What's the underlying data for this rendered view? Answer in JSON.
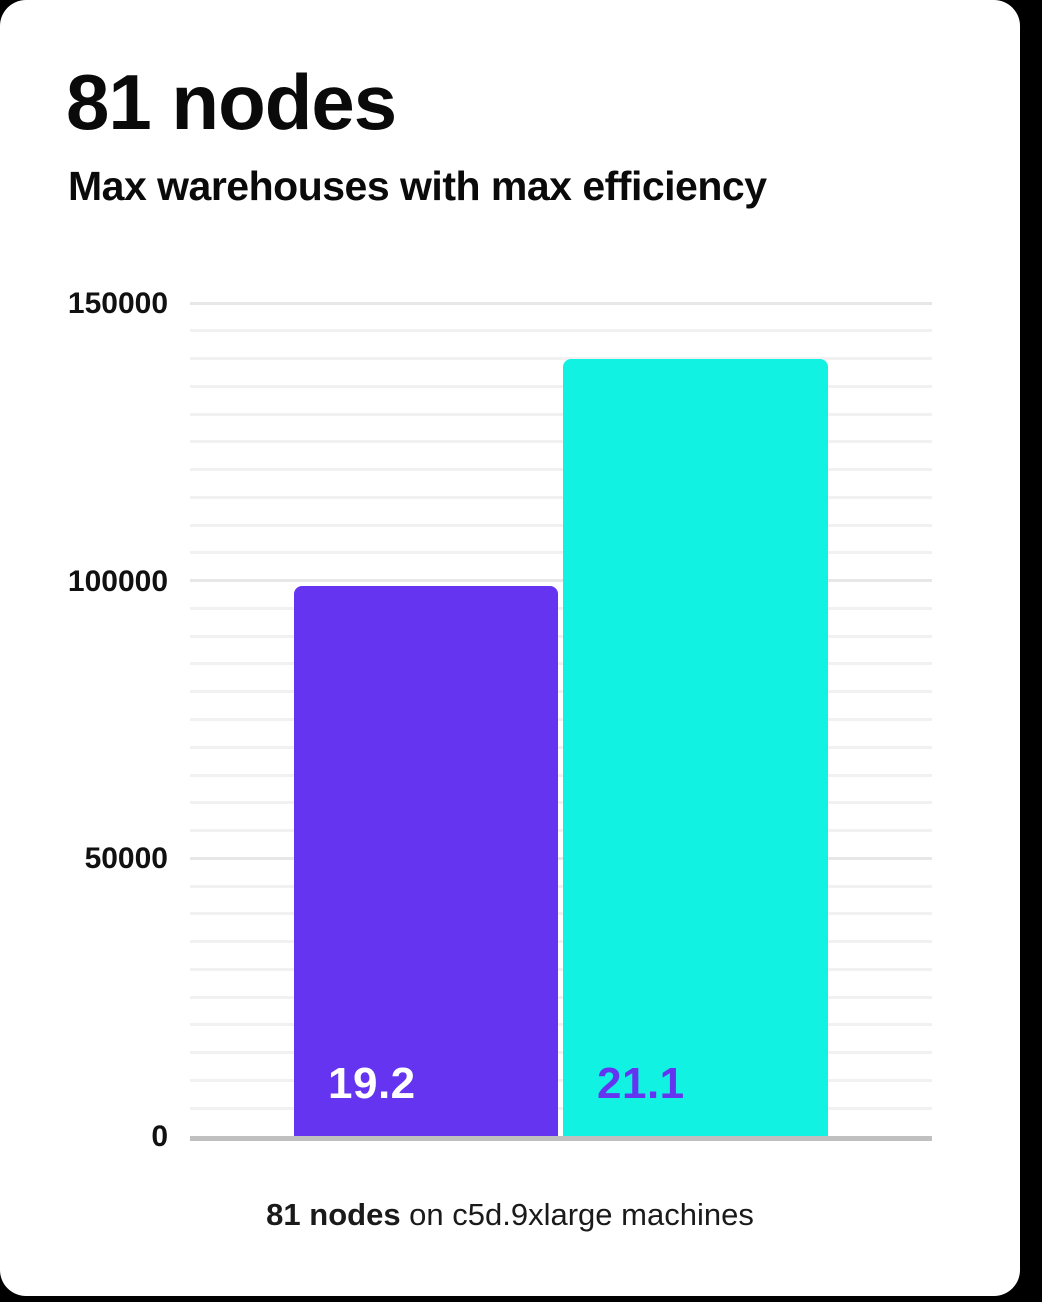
{
  "page": {
    "title": "81 nodes",
    "subtitle": "Max warehouses with max efficiency",
    "caption": {
      "bold": "81 nodes",
      "rest": " on c5d.9xlarge machines"
    }
  },
  "colors": {
    "page_bg": "#000000",
    "card_bg": "#ffffff",
    "text": "#0a0a0a",
    "bar_purple": "#6534f1",
    "bar_cyan": "#12f2e3",
    "label_on_purple": "#ffffff",
    "label_on_cyan": "#6534f1",
    "gridline_major": "#e7e7e7",
    "gridline_minor": "#f1f1f1",
    "axis_line": "#c0c0c0"
  },
  "chart_data": {
    "type": "bar",
    "title": "81 nodes",
    "subtitle": "Max warehouses with max efficiency",
    "caption": "81 nodes on c5d.9xlarge machines",
    "categories": [
      "19.2",
      "21.1"
    ],
    "series": [
      {
        "name": "Max warehouses",
        "values": [
          99000,
          140000
        ]
      }
    ],
    "bar_value_labels": [
      "19.2",
      "21.1"
    ],
    "bar_colors": [
      "#6534f1",
      "#12f2e3"
    ],
    "bar_label_colors": [
      "#ffffff",
      "#6534f1"
    ],
    "ylim": [
      0,
      150000
    ],
    "yticks": [
      0,
      50000,
      100000,
      150000
    ],
    "ytick_labels": [
      "0",
      "50000",
      "100000",
      "150000"
    ],
    "minor_gridline_step": 5000,
    "grid": "horizontal",
    "legend": "none"
  }
}
